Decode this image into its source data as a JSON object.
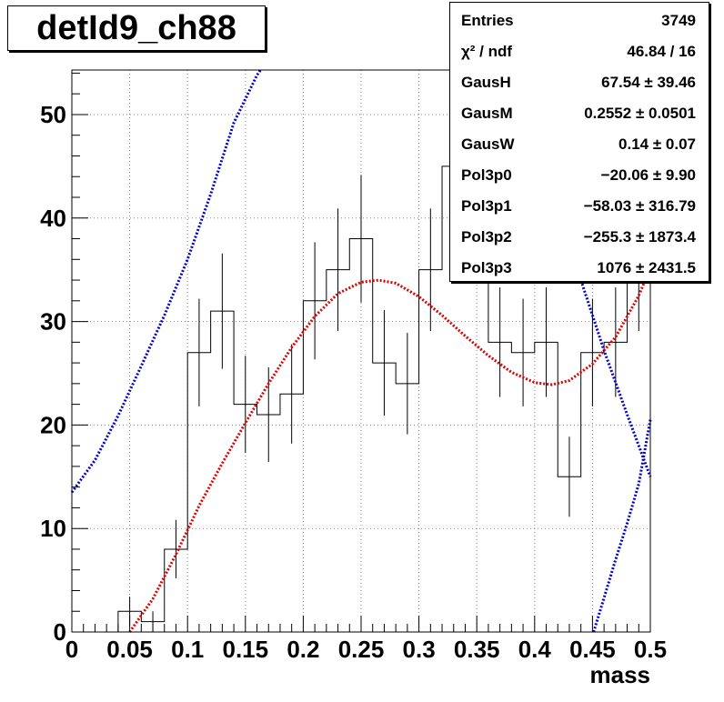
{
  "title": "detId9_ch88",
  "stats": [
    {
      "label": "Entries",
      "value": "3749"
    },
    {
      "label": "χ² / ndf",
      "value": "46.84 / 16"
    },
    {
      "label": "GausH",
      "value": "67.54 ± 39.46"
    },
    {
      "label": "GausM",
      "value": "0.2552 ± 0.0501"
    },
    {
      "label": "GausW",
      "value": "0.14 ± 0.07"
    },
    {
      "label": "Pol3p0",
      "value": "−20.06 ± 9.90"
    },
    {
      "label": "Pol3p1",
      "value": "−58.03 ± 316.79"
    },
    {
      "label": "Pol3p2",
      "value": "−255.3 ± 1873.4"
    },
    {
      "label": "Pol3p3",
      "value": "1076 ± 2431.5"
    }
  ],
  "colors": {
    "histogram": "#000000",
    "total_fit": "#dd0000",
    "background_fit": "#0000cc"
  },
  "chart_data": {
    "type": "histogram",
    "xlabel": "mass",
    "ylabel": "",
    "xlim": [
      0,
      0.5
    ],
    "ylim": [
      0,
      54.3
    ],
    "grid": true,
    "x_ticks": [
      "0",
      "0.05",
      "0.1",
      "0.15",
      "0.2",
      "0.25",
      "0.3",
      "0.35",
      "0.4",
      "0.45",
      "0.5"
    ],
    "y_ticks": [
      "0",
      "10",
      "20",
      "30",
      "40",
      "50"
    ],
    "bin_width": 0.02,
    "bins": [
      {
        "x": 0.01,
        "y": 0,
        "err": 0
      },
      {
        "x": 0.03,
        "y": 0,
        "err": 0
      },
      {
        "x": 0.05,
        "y": 2,
        "err": 1.41
      },
      {
        "x": 0.07,
        "y": 1,
        "err": 1.0
      },
      {
        "x": 0.09,
        "y": 8,
        "err": 2.83
      },
      {
        "x": 0.11,
        "y": 27,
        "err": 5.2
      },
      {
        "x": 0.13,
        "y": 31,
        "err": 5.57
      },
      {
        "x": 0.15,
        "y": 22,
        "err": 4.69
      },
      {
        "x": 0.17,
        "y": 21,
        "err": 4.58
      },
      {
        "x": 0.19,
        "y": 23,
        "err": 4.8
      },
      {
        "x": 0.21,
        "y": 32,
        "err": 5.66
      },
      {
        "x": 0.23,
        "y": 35,
        "err": 5.92
      },
      {
        "x": 0.25,
        "y": 38,
        "err": 6.16
      },
      {
        "x": 0.27,
        "y": 26,
        "err": 5.1
      },
      {
        "x": 0.29,
        "y": 24,
        "err": 4.9
      },
      {
        "x": 0.31,
        "y": 35,
        "err": 5.92
      },
      {
        "x": 0.33,
        "y": 45,
        "err": 6.71
      },
      {
        "x": 0.35,
        "y": 40,
        "err": 6.32
      },
      {
        "x": 0.37,
        "y": 28,
        "err": 5.29
      },
      {
        "x": 0.39,
        "y": 27,
        "err": 5.2
      },
      {
        "x": 0.41,
        "y": 28,
        "err": 5.29
      },
      {
        "x": 0.43,
        "y": 15,
        "err": 3.87
      },
      {
        "x": 0.45,
        "y": 27,
        "err": 5.2
      },
      {
        "x": 0.47,
        "y": 28,
        "err": 5.29
      },
      {
        "x": 0.49,
        "y": 35,
        "err": 5.92
      }
    ],
    "total_fit": {
      "x": [
        0.05,
        0.07,
        0.09,
        0.11,
        0.13,
        0.15,
        0.17,
        0.19,
        0.21,
        0.23,
        0.25,
        0.265,
        0.28,
        0.3,
        0.32,
        0.34,
        0.36,
        0.38,
        0.4,
        0.415,
        0.43,
        0.45,
        0.47,
        0.49,
        0.5
      ],
      "y": [
        0,
        3.2,
        7.5,
        12.2,
        16.3,
        20.2,
        24.0,
        27.5,
        30.5,
        32.7,
        33.8,
        34.0,
        33.7,
        32.4,
        30.6,
        28.6,
        26.7,
        25.1,
        24.1,
        23.9,
        24.3,
        25.9,
        28.5,
        32.5,
        35.2
      ]
    },
    "background_fit": {
      "x": [
        0.0,
        0.02,
        0.04,
        0.06,
        0.08,
        0.1,
        0.12,
        0.14,
        0.16,
        0.163,
        null,
        0.39,
        0.4,
        0.42,
        0.44,
        0.46,
        0.48,
        0.5,
        null,
        0.451,
        0.46,
        0.47,
        0.48,
        0.49,
        0.5
      ],
      "y": [
        13.5,
        16.6,
        20.9,
        25.7,
        30.6,
        36.0,
        42.3,
        49.2,
        53.8,
        54.3,
        null,
        54.3,
        50.4,
        42.0,
        34.0,
        27.2,
        21.0,
        15.0,
        null,
        0,
        3.3,
        7.0,
        10.5,
        14.3,
        20.5
      ]
    }
  }
}
